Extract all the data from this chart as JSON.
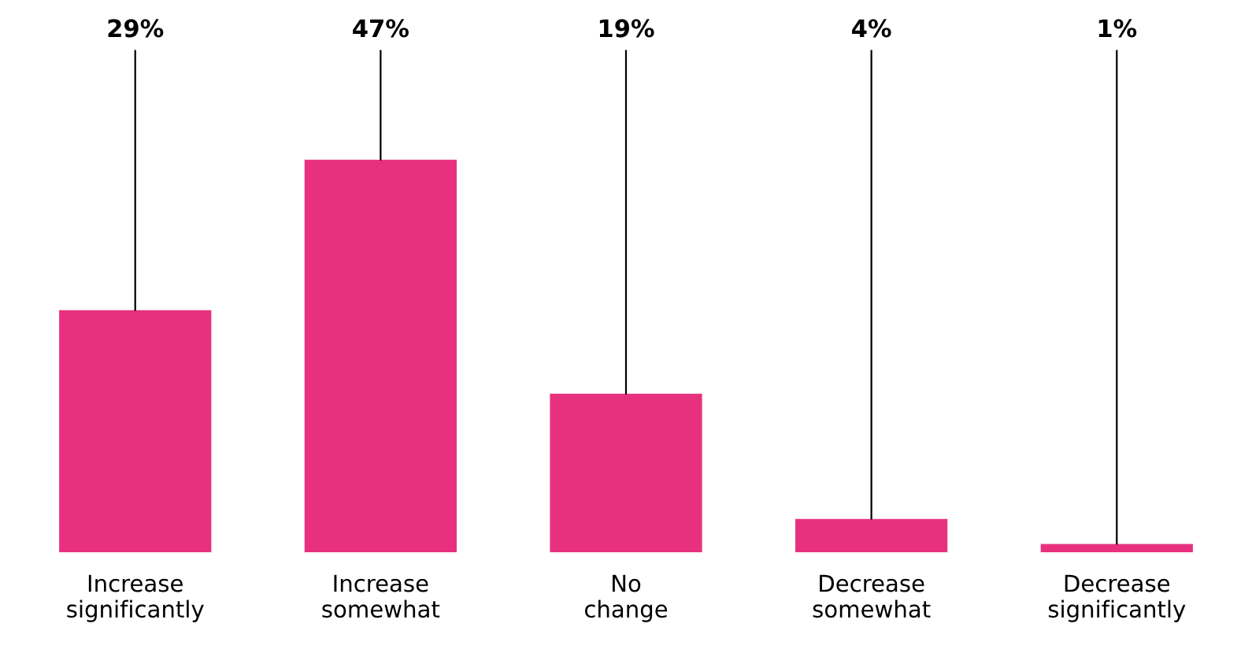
{
  "chart_data": {
    "type": "bar",
    "categories": [
      "Increase\nsignificantly",
      "Increase\nsomewhat",
      "No\nchange",
      "Decrease\nsomewhat",
      "Decrease\nsignificantly"
    ],
    "values": [
      29,
      47,
      19,
      4,
      1
    ],
    "value_labels": [
      "29%",
      "47%",
      "19%",
      "4%",
      "1%"
    ],
    "color": "#e8317e"
  }
}
